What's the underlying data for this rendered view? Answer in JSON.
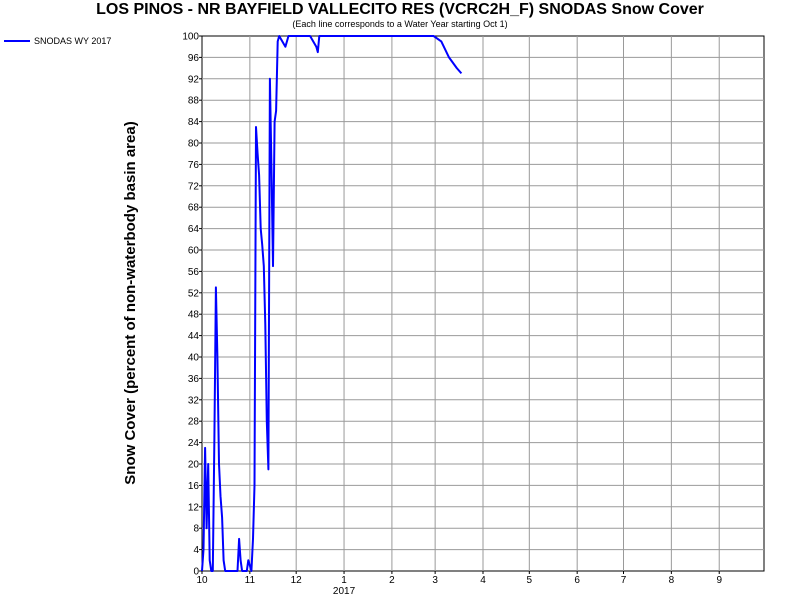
{
  "chart_data": {
    "type": "line",
    "title": "LOS PINOS - NR BAYFIELD VALLECITO RES (VCRC2H_F) SNODAS Snow Cover",
    "subtitle": "(Each line corresponds to a Water Year starting Oct 1)",
    "xlabel": "",
    "ylabel": "Snow Cover (percent of non-waterbody basin area)",
    "ylim": [
      0,
      100
    ],
    "y_ticks": [
      0,
      4,
      8,
      12,
      16,
      20,
      24,
      28,
      32,
      36,
      40,
      44,
      48,
      52,
      56,
      60,
      64,
      68,
      72,
      76,
      80,
      84,
      88,
      92,
      96,
      100
    ],
    "xlim": [
      "2016-10-01",
      "2017-09-30"
    ],
    "x_ticks": [
      {
        "label": "10",
        "date": "2016-10-01"
      },
      {
        "label": "11",
        "date": "2016-11-01"
      },
      {
        "label": "12",
        "date": "2016-12-01"
      },
      {
        "label": "1",
        "date": "2017-01-01"
      },
      {
        "label": "2",
        "date": "2017-02-01"
      },
      {
        "label": "3",
        "date": "2017-03-01"
      },
      {
        "label": "4",
        "date": "2017-04-01"
      },
      {
        "label": "5",
        "date": "2017-05-01"
      },
      {
        "label": "6",
        "date": "2017-06-01"
      },
      {
        "label": "7",
        "date": "2017-07-01"
      },
      {
        "label": "8",
        "date": "2017-08-01"
      },
      {
        "label": "9",
        "date": "2017-09-01"
      }
    ],
    "year_label": {
      "text": "2017",
      "date": "2017-01-01"
    },
    "grid": true,
    "legend_position": "top-left",
    "series": [
      {
        "name": "SNODAS WY 2017",
        "color": "#0000ff",
        "points": [
          [
            "2016-10-01",
            0
          ],
          [
            "2016-10-02",
            4
          ],
          [
            "2016-10-03",
            23
          ],
          [
            "2016-10-04",
            8
          ],
          [
            "2016-10-05",
            20
          ],
          [
            "2016-10-06",
            2
          ],
          [
            "2016-10-07",
            0
          ],
          [
            "2016-10-08",
            0
          ],
          [
            "2016-10-09",
            25
          ],
          [
            "2016-10-10",
            53
          ],
          [
            "2016-10-11",
            40
          ],
          [
            "2016-10-12",
            20
          ],
          [
            "2016-10-13",
            14
          ],
          [
            "2016-10-14",
            10
          ],
          [
            "2016-10-15",
            2
          ],
          [
            "2016-10-16",
            0
          ],
          [
            "2016-10-20",
            0
          ],
          [
            "2016-10-24",
            0
          ],
          [
            "2016-10-25",
            6
          ],
          [
            "2016-10-26",
            2
          ],
          [
            "2016-10-27",
            0
          ],
          [
            "2016-10-28",
            0
          ],
          [
            "2016-10-30",
            0
          ],
          [
            "2016-10-31",
            2
          ],
          [
            "2016-11-01",
            1
          ],
          [
            "2016-11-02",
            0
          ],
          [
            "2016-11-03",
            6
          ],
          [
            "2016-11-04",
            16
          ],
          [
            "2016-11-05",
            83
          ],
          [
            "2016-11-06",
            78
          ],
          [
            "2016-11-07",
            74
          ],
          [
            "2016-11-08",
            64
          ],
          [
            "2016-11-09",
            61
          ],
          [
            "2016-11-10",
            57
          ],
          [
            "2016-11-11",
            46
          ],
          [
            "2016-11-12",
            28
          ],
          [
            "2016-11-13",
            19
          ],
          [
            "2016-11-14",
            92
          ],
          [
            "2016-11-15",
            75
          ],
          [
            "2016-11-16",
            57
          ],
          [
            "2016-11-17",
            84
          ],
          [
            "2016-11-18",
            86
          ],
          [
            "2016-11-19",
            99
          ],
          [
            "2016-11-20",
            100
          ],
          [
            "2016-11-22",
            99
          ],
          [
            "2016-11-24",
            98
          ],
          [
            "2016-11-26",
            100
          ],
          [
            "2016-12-01",
            100
          ],
          [
            "2016-12-10",
            100
          ],
          [
            "2016-12-12",
            99
          ],
          [
            "2016-12-14",
            98
          ],
          [
            "2016-12-15",
            97
          ],
          [
            "2016-12-16",
            100
          ],
          [
            "2016-12-31",
            100
          ],
          [
            "2017-01-31",
            100
          ],
          [
            "2017-02-28",
            100
          ],
          [
            "2017-03-05",
            99
          ],
          [
            "2017-03-10",
            96
          ],
          [
            "2017-03-15",
            94
          ],
          [
            "2017-03-18",
            93
          ]
        ]
      }
    ]
  }
}
